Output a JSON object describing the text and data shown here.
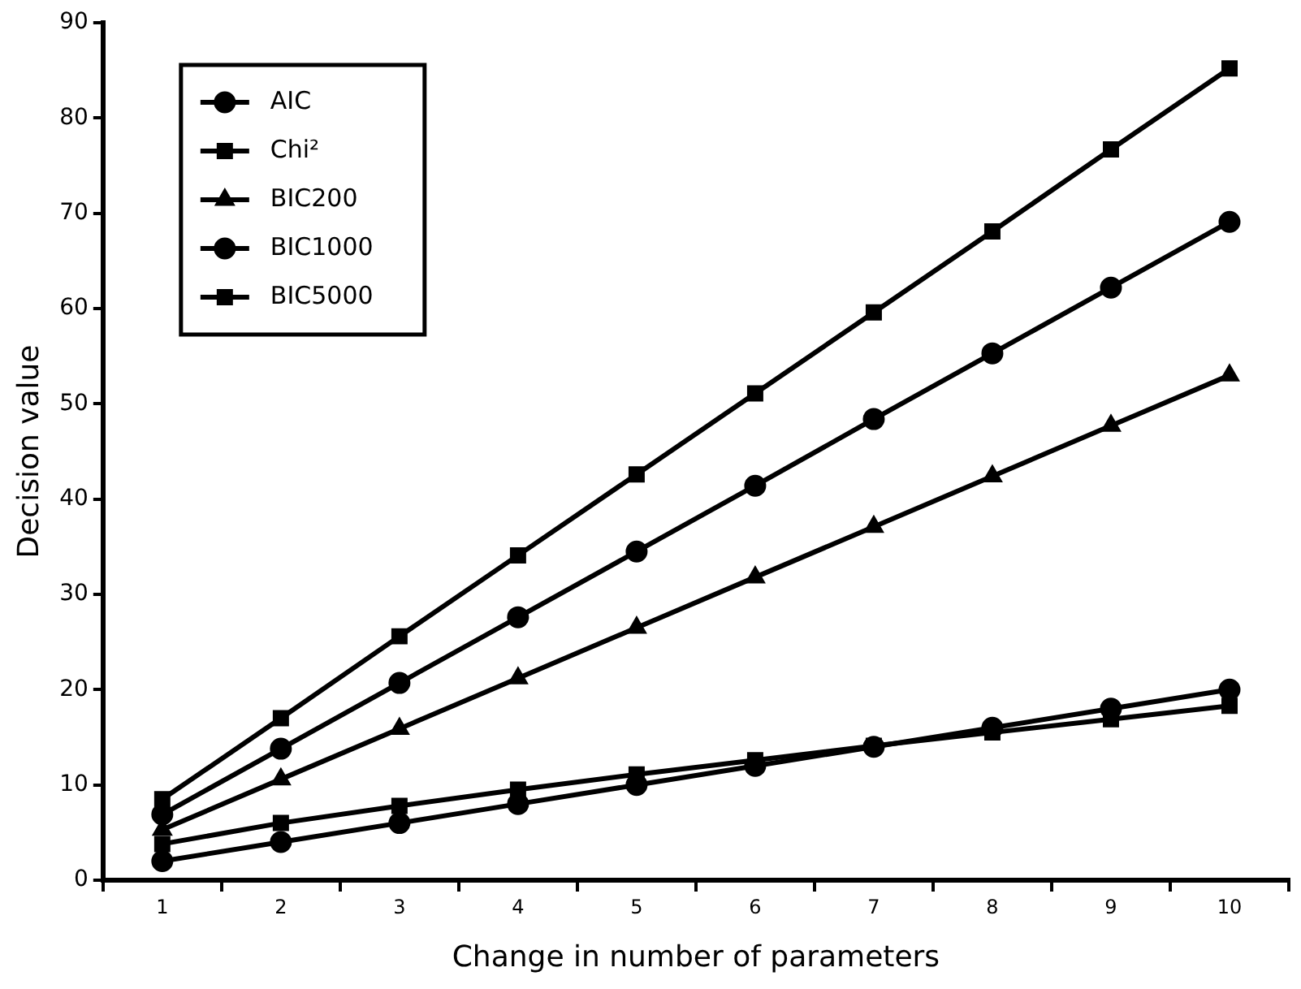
{
  "chart_data": {
    "type": "line",
    "xlabel": "Change in number of parameters",
    "ylabel": "Decision value",
    "categories": [
      "1",
      "2",
      "3",
      "4",
      "5",
      "6",
      "7",
      "8",
      "9",
      "10"
    ],
    "ylim": [
      0,
      90
    ],
    "yticks": [
      0,
      10,
      20,
      30,
      40,
      50,
      60,
      70,
      80,
      90
    ],
    "grid": false,
    "legend": "top left",
    "line_style": "solid",
    "series": [
      {
        "name": "AIC",
        "color": "#000000",
        "marker": "circle",
        "values": [
          2,
          4,
          6,
          8,
          10,
          12,
          14,
          16,
          18,
          20
        ]
      },
      {
        "name": "Chi²",
        "color": "#000000",
        "marker": "square",
        "values": [
          3.8,
          6,
          7.8,
          9.5,
          11.1,
          12.6,
          14.1,
          15.5,
          16.9,
          18.3
        ]
      },
      {
        "name": "BIC200",
        "color": "#000000",
        "marker": "triangle",
        "values": [
          5.3,
          10.6,
          15.9,
          21.2,
          26.5,
          31.8,
          37.1,
          42.4,
          47.7,
          53
        ]
      },
      {
        "name": "BIC1000",
        "color": "#000000",
        "marker": "circle",
        "values": [
          6.9,
          13.8,
          20.7,
          27.6,
          34.5,
          41.4,
          48.4,
          55.3,
          62.2,
          69.1
        ]
      },
      {
        "name": "BIC5000",
        "color": "#000000",
        "marker": "square",
        "values": [
          8.5,
          17,
          25.6,
          34.1,
          42.6,
          51.1,
          59.6,
          68.1,
          76.7,
          85.2
        ]
      }
    ]
  }
}
